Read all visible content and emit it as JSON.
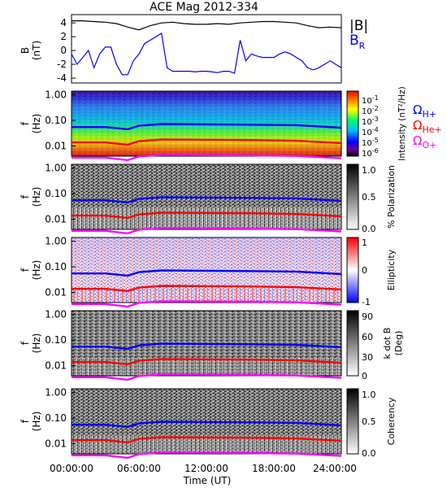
{
  "title": "ACE Mag 2012-334",
  "xaxis": {
    "label": "Time (UT)",
    "ticks": [
      "00:00:00",
      "06:00:00",
      "12:00:00",
      "18:00:00",
      "24:00:00"
    ],
    "range_hours": [
      0,
      24
    ]
  },
  "freq_axis": {
    "label_line1": "f",
    "label_line2": "(Hz)",
    "ticks": [
      "1.00",
      "0.10",
      "0.01"
    ],
    "scale": "log"
  },
  "line_legend": {
    "btotal": "|B|",
    "br": "B",
    "br_sub": "R"
  },
  "gyro_legend": [
    {
      "main": "Ω",
      "sub": "H+",
      "color": "#0000ff"
    },
    {
      "main": "Ω",
      "sub": "He+",
      "color": "#ff0000"
    },
    {
      "main": "Ω",
      "sub": "O+",
      "color": "#ff00ff"
    }
  ],
  "panels": {
    "b": {
      "ylabel_line1": "B",
      "ylabel_line2": "(nT)",
      "yticks": [
        "4",
        "2",
        "0",
        "-2",
        "-4"
      ]
    },
    "intensity": {
      "cbar_label": "Intensity (nT²/Hz)",
      "cbar_ticks": [
        {
          "base": "10",
          "exp": "-1"
        },
        {
          "base": "10",
          "exp": "-2"
        },
        {
          "base": "10",
          "exp": "-3"
        },
        {
          "base": "10",
          "exp": "-4"
        },
        {
          "base": "10",
          "exp": "-5"
        },
        {
          "base": "10",
          "exp": "-6"
        }
      ]
    },
    "polarization": {
      "cbar_label": "% Polarization",
      "cbar_ticks": [
        "1.0",
        "0.5",
        "0.0"
      ]
    },
    "ellipticity": {
      "cbar_label": "Ellipticity",
      "cbar_ticks": [
        "1",
        "0",
        "-1"
      ]
    },
    "kdotb": {
      "cbar_label_line1": "k dot B",
      "cbar_label_line2": "(Deg)",
      "cbar_ticks": [
        "90",
        "60",
        "30",
        "0"
      ]
    },
    "coherency": {
      "cbar_label": "Coherency",
      "cbar_ticks": [
        "1.0",
        "0.5",
        "0.0"
      ]
    }
  },
  "colors": {
    "btotal": "#000000",
    "br": "#0000ff",
    "hplus": "#0000ff",
    "heplus": "#ff0000",
    "oplus": "#ff00ff"
  },
  "chart_data": [
    {
      "type": "line",
      "title": "ACE Mag 2012-334",
      "ylabel": "B (nT)",
      "xlabel": "Time (UT)",
      "ylim": [
        -4.7,
        5.2
      ],
      "series": [
        {
          "name": "|B|",
          "color": "#000000",
          "x": [
            0,
            1,
            2,
            3,
            4,
            5,
            6,
            7,
            8,
            9,
            10,
            11,
            12,
            13,
            14,
            15,
            16,
            17,
            18,
            19,
            20,
            21,
            22,
            23,
            24
          ],
          "y": [
            4.3,
            4.3,
            4.2,
            4.1,
            3.9,
            3.4,
            3.0,
            3.6,
            4.0,
            4.1,
            3.9,
            3.8,
            3.8,
            3.9,
            3.8,
            4.0,
            4.1,
            4.2,
            4.2,
            4.1,
            4.0,
            3.6,
            3.3,
            3.4,
            3.3
          ]
        },
        {
          "name": "B_R",
          "color": "#0000ff",
          "x": [
            0,
            0.5,
            1,
            1.5,
            2,
            2.5,
            3,
            3.5,
            4,
            4.5,
            5,
            5.5,
            6,
            6.5,
            7,
            7.5,
            8,
            8.5,
            9,
            9.5,
            10,
            10.5,
            11,
            11.5,
            12,
            12.5,
            13,
            13.5,
            14,
            14.5,
            15,
            15.5,
            16,
            16.5,
            17,
            17.5,
            18,
            18.5,
            19,
            19.5,
            20,
            20.5,
            21,
            21.5,
            22,
            22.5,
            23,
            23.5,
            24
          ],
          "y": [
            -0.5,
            -2.0,
            -1.0,
            0.0,
            -2.5,
            -0.5,
            0.5,
            0.5,
            -2.0,
            -3.5,
            -3.5,
            -1.5,
            -0.5,
            1.0,
            1.5,
            2.0,
            2.5,
            -2.5,
            -3.0,
            -3.0,
            -3.0,
            -3.0,
            -3.1,
            -3.0,
            -3.0,
            -3.1,
            -3.2,
            -3.0,
            -3.0,
            -3.3,
            1.5,
            -1.5,
            -0.5,
            -0.8,
            -1.0,
            -1.0,
            -1.0,
            -0.5,
            -0.2,
            -0.5,
            -1.0,
            -1.5,
            -2.5,
            -2.8,
            -2.5,
            -2.0,
            -1.5,
            -2.0,
            -2.5
          ]
        }
      ]
    },
    {
      "type": "heatmap",
      "name": "Intensity (nT^2/Hz)",
      "ylabel": "f (Hz)",
      "yscale": "log",
      "ylim": [
        0.004,
        1.4
      ],
      "clim": [
        1e-06,
        0.1
      ],
      "overlays": [
        {
          "name": "ΩH+",
          "color": "#0000ff",
          "x": [
            0,
            3,
            5,
            6,
            8,
            12,
            16,
            20,
            24
          ],
          "y": [
            0.055,
            0.055,
            0.045,
            0.062,
            0.072,
            0.07,
            0.068,
            0.065,
            0.052
          ]
        },
        {
          "name": "ΩHe+",
          "color": "#ff0000",
          "x": [
            0,
            3,
            5,
            6,
            8,
            12,
            16,
            20,
            24
          ],
          "y": [
            0.0138,
            0.0138,
            0.0112,
            0.0155,
            0.018,
            0.0175,
            0.017,
            0.016,
            0.013
          ]
        },
        {
          "name": "ΩO+",
          "color": "#ff00ff",
          "x": [
            0,
            3,
            5,
            6,
            8,
            12,
            16,
            20,
            24
          ],
          "y": [
            0.0035,
            0.0035,
            0.0028,
            0.0039,
            0.0045,
            0.0044,
            0.0043,
            0.0041,
            0.0033
          ]
        }
      ]
    },
    {
      "type": "heatmap",
      "name": "% Polarization",
      "ylabel": "f (Hz)",
      "yscale": "log",
      "clim": [
        0.0,
        1.0
      ]
    },
    {
      "type": "heatmap",
      "name": "Ellipticity",
      "ylabel": "f (Hz)",
      "yscale": "log",
      "clim": [
        -1,
        1
      ]
    },
    {
      "type": "heatmap",
      "name": "k dot B (Deg)",
      "ylabel": "f (Hz)",
      "yscale": "log",
      "clim": [
        0,
        90
      ]
    },
    {
      "type": "heatmap",
      "name": "Coherency",
      "ylabel": "f (Hz)",
      "yscale": "log",
      "clim": [
        0.0,
        1.0
      ]
    }
  ]
}
